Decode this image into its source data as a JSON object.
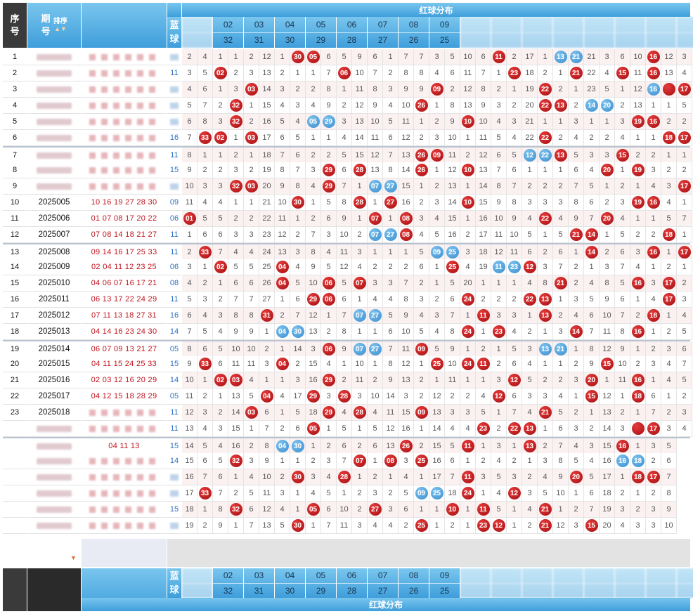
{
  "header": {
    "seq": "序号",
    "issue": "期号",
    "sort": "排序",
    "blue": "蓝球",
    "title": "红球分布",
    "pairs": [
      {
        "top": "",
        "bottom": "",
        "faded": true
      },
      {
        "top": "02",
        "bottom": "32",
        "faded": false
      },
      {
        "top": "03",
        "bottom": "31",
        "faded": false
      },
      {
        "top": "04",
        "bottom": "30",
        "faded": false
      },
      {
        "top": "05",
        "bottom": "29",
        "faded": false
      },
      {
        "top": "06",
        "bottom": "28",
        "faded": false
      },
      {
        "top": "07",
        "bottom": "27",
        "faded": false
      },
      {
        "top": "08",
        "bottom": "26",
        "faded": false
      },
      {
        "top": "09",
        "bottom": "25",
        "faded": false
      },
      {
        "top": "",
        "bottom": "",
        "faded": true
      },
      {
        "top": "",
        "bottom": "",
        "faded": true
      },
      {
        "top": "",
        "bottom": "",
        "faded": true
      },
      {
        "top": "",
        "bottom": "",
        "faded": true
      },
      {
        "top": "",
        "bottom": "",
        "faded": true
      },
      {
        "top": "",
        "bottom": "",
        "faded": true
      },
      {
        "top": "",
        "bottom": "",
        "faded": true
      },
      {
        "top": "",
        "bottom": "",
        "faded": true
      }
    ]
  },
  "footer": {
    "blue": "蓝球",
    "title": "红球分布"
  },
  "colors": {
    "red_ball": "#b81419",
    "blue_ball": "#4a9ad6",
    "header_blue": "#4fa6dd"
  },
  "rows": [
    {
      "seq": "1",
      "issue": "",
      "draw": "",
      "blue": "",
      "fuzzy": true,
      "cells": [
        "2",
        "4",
        "1",
        "1",
        "2",
        "12",
        "1",
        "R30",
        "R05",
        "6",
        "5",
        "9",
        "6",
        "1",
        "7",
        "7",
        "3",
        "5",
        "10",
        "6",
        "R11",
        "2",
        "17",
        "1",
        "B13",
        "B21",
        "21",
        "3",
        "6",
        "10",
        "R16",
        "12",
        "3"
      ]
    },
    {
      "seq": "2",
      "issue": "",
      "draw": "",
      "blue": "11",
      "fuzzy": true,
      "cells": [
        "3",
        "5",
        "R02",
        "2",
        "3",
        "13",
        "2",
        "1",
        "1",
        "7",
        "R06",
        "10",
        "7",
        "2",
        "8",
        "8",
        "4",
        "6",
        "11",
        "7",
        "1",
        "R23",
        "18",
        "2",
        "1",
        "R21",
        "22",
        "4",
        "R15",
        "11",
        "R16",
        "13",
        "4"
      ]
    },
    {
      "seq": "3",
      "issue": "",
      "draw": "",
      "blue": "",
      "fuzzy": true,
      "cells": [
        "4",
        "6",
        "1",
        "3",
        "R03",
        "14",
        "3",
        "2",
        "2",
        "8",
        "1",
        "11",
        "8",
        "3",
        "9",
        "9",
        "R09",
        "2",
        "12",
        "8",
        "2",
        "1",
        "19",
        "R22",
        "2",
        "1",
        "23",
        "5",
        "1",
        "12",
        "B16",
        "R",
        "R17"
      ]
    },
    {
      "seq": "4",
      "issue": "",
      "draw": "",
      "blue": "",
      "fuzzy": true,
      "cells": [
        "5",
        "7",
        "2",
        "R32",
        "1",
        "15",
        "4",
        "3",
        "4",
        "9",
        "2",
        "12",
        "9",
        "4",
        "10",
        "R26",
        "1",
        "8",
        "13",
        "9",
        "3",
        "2",
        "20",
        "R22",
        "R13",
        "2",
        "B14",
        "B20",
        "2",
        "13",
        "1",
        "1",
        "5"
      ]
    },
    {
      "seq": "5",
      "issue": "",
      "draw": "",
      "blue": "",
      "fuzzy": true,
      "cells": [
        "6",
        "8",
        "3",
        "R32",
        "2",
        "16",
        "5",
        "4",
        "B05",
        "B29",
        "3",
        "13",
        "10",
        "5",
        "11",
        "1",
        "2",
        "9",
        "R10",
        "10",
        "4",
        "3",
        "21",
        "1",
        "1",
        "3",
        "1",
        "1",
        "3",
        "R19",
        "R16",
        "2",
        "2"
      ]
    },
    {
      "seq": "6",
      "issue": "",
      "draw": "",
      "blue": "16",
      "fuzzy": true,
      "cells": [
        "7",
        "R33",
        "R02",
        "1",
        "R03",
        "17",
        "6",
        "5",
        "1",
        "1",
        "4",
        "14",
        "11",
        "6",
        "12",
        "2",
        "3",
        "10",
        "1",
        "11",
        "5",
        "4",
        "22",
        "R22",
        "2",
        "4",
        "2",
        "2",
        "4",
        "1",
        "1",
        "R18",
        "R17"
      ]
    },
    {
      "seq": "7",
      "issue": "",
      "draw": "",
      "blue": "11",
      "fuzzy": true,
      "sep": true,
      "cells": [
        "8",
        "1",
        "1",
        "2",
        "1",
        "18",
        "7",
        "6",
        "2",
        "2",
        "5",
        "15",
        "12",
        "7",
        "13",
        "R26",
        "R09",
        "11",
        "2",
        "12",
        "6",
        "5",
        "B12",
        "B22",
        "R13",
        "5",
        "3",
        "3",
        "R15",
        "2",
        "2",
        "1",
        "1"
      ]
    },
    {
      "seq": "8",
      "issue": "",
      "draw": "",
      "blue": "15",
      "fuzzy": true,
      "cells": [
        "9",
        "2",
        "2",
        "3",
        "2",
        "19",
        "8",
        "7",
        "3",
        "R29",
        "6",
        "R28",
        "13",
        "8",
        "14",
        "R26",
        "1",
        "12",
        "R10",
        "13",
        "7",
        "6",
        "1",
        "1",
        "1",
        "6",
        "4",
        "R20",
        "1",
        "R19",
        "3",
        "2",
        "2"
      ]
    },
    {
      "seq": "9",
      "issue": "",
      "draw": "",
      "blue": "",
      "fuzzy": true,
      "cells": [
        "10",
        "3",
        "3",
        "R32",
        "R03",
        "20",
        "9",
        "8",
        "4",
        "R29",
        "7",
        "1",
        "B07",
        "B27",
        "15",
        "1",
        "2",
        "13",
        "1",
        "14",
        "8",
        "7",
        "2",
        "2",
        "2",
        "7",
        "5",
        "1",
        "2",
        "1",
        "4",
        "3",
        "R17"
      ]
    },
    {
      "seq": "10",
      "issue": "2025005",
      "draw": "10 16 19 27 28 30",
      "blue": "09",
      "fuzzy": false,
      "cells": [
        "11",
        "4",
        "4",
        "1",
        "1",
        "21",
        "10",
        "R30",
        "1",
        "5",
        "8",
        "R28",
        "1",
        "R27",
        "16",
        "2",
        "3",
        "14",
        "R10",
        "15",
        "9",
        "8",
        "3",
        "3",
        "3",
        "8",
        "6",
        "2",
        "3",
        "R19",
        "R16",
        "4",
        "1"
      ]
    },
    {
      "seq": "11",
      "issue": "2025006",
      "draw": "01 07 08 17 20 22",
      "blue": "06",
      "fuzzy": false,
      "cells": [
        "R01",
        "5",
        "5",
        "2",
        "2",
        "22",
        "11",
        "1",
        "2",
        "6",
        "9",
        "1",
        "R07",
        "1",
        "R08",
        "3",
        "4",
        "15",
        "1",
        "16",
        "10",
        "9",
        "4",
        "R22",
        "4",
        "9",
        "7",
        "R20",
        "4",
        "1",
        "1",
        "5",
        "7"
      ]
    },
    {
      "seq": "12",
      "issue": "2025007",
      "draw": "07 08 14 18 21 27",
      "blue": "11",
      "fuzzy": false,
      "cells": [
        "1",
        "6",
        "6",
        "3",
        "3",
        "23",
        "12",
        "2",
        "7",
        "3",
        "10",
        "2",
        "B07",
        "B27",
        "R08",
        "4",
        "5",
        "16",
        "2",
        "17",
        "11",
        "10",
        "5",
        "1",
        "5",
        "R21",
        "R14",
        "1",
        "5",
        "2",
        "2",
        "R18",
        "1"
      ]
    },
    {
      "seq": "13",
      "issue": "2025008",
      "draw": "09 14 16 17 25 33",
      "blue": "11",
      "fuzzy": false,
      "sep": true,
      "cells": [
        "2",
        "R33",
        "7",
        "4",
        "4",
        "24",
        "13",
        "3",
        "8",
        "4",
        "11",
        "3",
        "1",
        "1",
        "1",
        "5",
        "B09",
        "B25",
        "3",
        "18",
        "12",
        "11",
        "6",
        "2",
        "6",
        "1",
        "R14",
        "2",
        "6",
        "3",
        "R16",
        "1",
        "R17"
      ]
    },
    {
      "seq": "14",
      "issue": "2025009",
      "draw": "02 04 11 12 23 25",
      "blue": "06",
      "fuzzy": false,
      "cells": [
        "3",
        "1",
        "R02",
        "5",
        "5",
        "25",
        "R04",
        "4",
        "9",
        "5",
        "12",
        "4",
        "2",
        "2",
        "2",
        "6",
        "1",
        "R25",
        "4",
        "19",
        "B11",
        "B23",
        "R12",
        "3",
        "7",
        "2",
        "1",
        "3",
        "7",
        "4",
        "1",
        "2",
        "1"
      ]
    },
    {
      "seq": "15",
      "issue": "2025010",
      "draw": "04 06 07 16 17 21",
      "blue": "08",
      "fuzzy": false,
      "cells": [
        "4",
        "2",
        "1",
        "6",
        "6",
        "26",
        "R04",
        "5",
        "10",
        "R06",
        "5",
        "R07",
        "3",
        "3",
        "7",
        "2",
        "1",
        "5",
        "20",
        "1",
        "1",
        "1",
        "4",
        "8",
        "R21",
        "2",
        "4",
        "8",
        "5",
        "R16",
        "3",
        "R17",
        "2"
      ]
    },
    {
      "seq": "16",
      "issue": "2025011",
      "draw": "06 13 17 22 24 29",
      "blue": "11",
      "fuzzy": false,
      "cells": [
        "5",
        "3",
        "2",
        "7",
        "7",
        "27",
        "1",
        "6",
        "R29",
        "R06",
        "6",
        "1",
        "4",
        "4",
        "8",
        "3",
        "2",
        "6",
        "R24",
        "2",
        "2",
        "2",
        "R22",
        "R13",
        "1",
        "3",
        "5",
        "9",
        "6",
        "1",
        "4",
        "R17",
        "3"
      ]
    },
    {
      "seq": "17",
      "issue": "2025012",
      "draw": "07 11 13 18 27 31",
      "blue": "16",
      "fuzzy": false,
      "cells": [
        "6",
        "4",
        "3",
        "8",
        "8",
        "R31",
        "2",
        "7",
        "12",
        "1",
        "7",
        "B07",
        "B27",
        "5",
        "9",
        "4",
        "3",
        "7",
        "1",
        "R11",
        "3",
        "3",
        "1",
        "R13",
        "2",
        "4",
        "6",
        "10",
        "7",
        "2",
        "R18",
        "1",
        "4"
      ]
    },
    {
      "seq": "18",
      "issue": "2025013",
      "draw": "04 14 16 23 24 30",
      "blue": "14",
      "fuzzy": false,
      "cells": [
        "7",
        "5",
        "4",
        "9",
        "9",
        "1",
        "B04",
        "B30",
        "13",
        "2",
        "8",
        "1",
        "1",
        "6",
        "10",
        "5",
        "4",
        "8",
        "R24",
        "1",
        "R23",
        "4",
        "2",
        "1",
        "3",
        "R14",
        "7",
        "11",
        "8",
        "R16",
        "1",
        "2",
        "5"
      ]
    },
    {
      "seq": "19",
      "issue": "2025014",
      "draw": "06 07 09 13 21 27",
      "blue": "05",
      "fuzzy": false,
      "sep": true,
      "cells": [
        "8",
        "6",
        "5",
        "10",
        "10",
        "2",
        "1",
        "14",
        "3",
        "R06",
        "9",
        "B07",
        "B27",
        "7",
        "11",
        "R09",
        "5",
        "9",
        "1",
        "2",
        "1",
        "5",
        "3",
        "B13",
        "B21",
        "1",
        "8",
        "12",
        "9",
        "1",
        "2",
        "3",
        "6"
      ]
    },
    {
      "seq": "20",
      "issue": "2025015",
      "draw": "04 11 15 24 25 33",
      "blue": "15",
      "fuzzy": false,
      "cells": [
        "9",
        "R33",
        "6",
        "11",
        "11",
        "3",
        "R04",
        "2",
        "15",
        "4",
        "1",
        "10",
        "1",
        "8",
        "12",
        "1",
        "R25",
        "10",
        "R24",
        "R11",
        "2",
        "6",
        "4",
        "1",
        "1",
        "2",
        "9",
        "R15",
        "10",
        "2",
        "3",
        "4",
        "7"
      ]
    },
    {
      "seq": "21",
      "issue": "2025016",
      "draw": "02 03 12 16 20 29",
      "blue": "14",
      "fuzzy": false,
      "cells": [
        "10",
        "1",
        "R02",
        "R03",
        "4",
        "1",
        "1",
        "3",
        "16",
        "R29",
        "2",
        "11",
        "2",
        "9",
        "13",
        "2",
        "1",
        "11",
        "1",
        "1",
        "3",
        "R12",
        "5",
        "2",
        "2",
        "3",
        "R20",
        "1",
        "11",
        "R16",
        "1",
        "4",
        "5"
      ]
    },
    {
      "seq": "22",
      "issue": "2025017",
      "draw": "04 12 15 18 28 29",
      "blue": "05",
      "fuzzy": false,
      "cells": [
        "11",
        "2",
        "1",
        "13",
        "5",
        "R04",
        "4",
        "17",
        "R29",
        "3",
        "R28",
        "3",
        "10",
        "14",
        "3",
        "2",
        "12",
        "2",
        "2",
        "4",
        "R12",
        "6",
        "3",
        "3",
        "4",
        "1",
        "R15",
        "12",
        "1",
        "R18",
        "6",
        "1",
        "2"
      ]
    },
    {
      "seq": "23",
      "issue": "2025018",
      "draw": "",
      "blue": "11",
      "fuzzy": true,
      "cells": [
        "12",
        "3",
        "2",
        "14",
        "R03",
        "6",
        "1",
        "5",
        "18",
        "R29",
        "4",
        "R28",
        "4",
        "11",
        "15",
        "R09",
        "13",
        "3",
        "3",
        "5",
        "1",
        "7",
        "4",
        "R21",
        "5",
        "2",
        "1",
        "13",
        "2",
        "1",
        "7",
        "2",
        "3"
      ]
    },
    {
      "seq": "",
      "issue": "",
      "draw": "",
      "blue": "11",
      "fuzzy": true,
      "cells": [
        "13",
        "4",
        "3",
        "15",
        "1",
        "7",
        "2",
        "6",
        "R05",
        "1",
        "5",
        "1",
        "5",
        "12",
        "16",
        "1",
        "14",
        "4",
        "4",
        "R23",
        "2",
        "R22",
        "R13",
        "1",
        "6",
        "3",
        "2",
        "14",
        "3",
        "R",
        "R17",
        "3",
        "4"
      ]
    },
    {
      "seq": "",
      "issue": "",
      "draw": "04 11 13",
      "blue": "15",
      "fuzzy": true,
      "sep": true,
      "cells": [
        "14",
        "5",
        "4",
        "16",
        "2",
        "8",
        "B04",
        "B30",
        "1",
        "2",
        "6",
        "2",
        "6",
        "13",
        "R26",
        "2",
        "15",
        "5",
        "R11",
        "1",
        "3",
        "1",
        "R13",
        "2",
        "7",
        "4",
        "3",
        "15",
        "R16",
        "1",
        "3",
        "5"
      ]
    },
    {
      "seq": "",
      "issue": "",
      "draw": "",
      "blue": "14",
      "fuzzy": true,
      "cells": [
        "15",
        "6",
        "5",
        "R32",
        "3",
        "9",
        "1",
        "1",
        "2",
        "3",
        "7",
        "R07",
        "1",
        "R08",
        "3",
        "R25",
        "16",
        "6",
        "1",
        "2",
        "4",
        "2",
        "1",
        "3",
        "8",
        "5",
        "4",
        "16",
        "B16",
        "B18",
        "2",
        "6"
      ]
    },
    {
      "seq": "",
      "issue": "",
      "draw": "",
      "blue": "",
      "fuzzy": true,
      "cells": [
        "16",
        "7",
        "6",
        "1",
        "4",
        "10",
        "2",
        "R30",
        "3",
        "4",
        "R28",
        "1",
        "2",
        "1",
        "4",
        "1",
        "17",
        "7",
        "R11",
        "3",
        "5",
        "3",
        "2",
        "4",
        "9",
        "R20",
        "5",
        "17",
        "1",
        "R18",
        "R17",
        "7"
      ]
    },
    {
      "seq": "",
      "issue": "",
      "draw": "",
      "blue": "",
      "fuzzy": true,
      "cells": [
        "17",
        "R33",
        "7",
        "2",
        "5",
        "11",
        "3",
        "1",
        "4",
        "5",
        "1",
        "2",
        "3",
        "2",
        "5",
        "B09",
        "B25",
        "18",
        "R24",
        "1",
        "4",
        "R12",
        "3",
        "5",
        "10",
        "1",
        "6",
        "18",
        "2",
        "1",
        "2",
        "8"
      ]
    },
    {
      "seq": "",
      "issue": "",
      "draw": "",
      "blue": "15",
      "fuzzy": true,
      "cells": [
        "18",
        "1",
        "8",
        "R32",
        "6",
        "12",
        "4",
        "1",
        "R05",
        "6",
        "10",
        "2",
        "R27",
        "3",
        "6",
        "1",
        "1",
        "R10",
        "1",
        "R11",
        "5",
        "1",
        "4",
        "R21",
        "1",
        "2",
        "7",
        "19",
        "3",
        "2",
        "3",
        "9"
      ]
    },
    {
      "seq": "",
      "issue": "",
      "draw": "",
      "blue": "",
      "fuzzy": true,
      "cells": [
        "19",
        "2",
        "9",
        "1",
        "7",
        "13",
        "5",
        "R30",
        "1",
        "7",
        "11",
        "3",
        "4",
        "4",
        "2",
        "R25",
        "1",
        "2",
        "1",
        "R23",
        "R12",
        "1",
        "2",
        "R21",
        "12",
        "3",
        "R15",
        "20",
        "4",
        "3",
        "3",
        "10"
      ]
    }
  ]
}
